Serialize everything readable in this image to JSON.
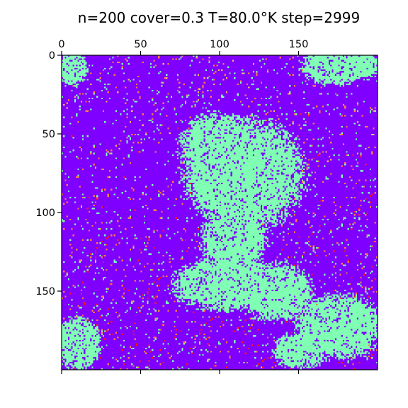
{
  "chart_data": {
    "type": "heatmap",
    "title": "n=200 cover=0.3 T=80.0°K step=2999",
    "grid_size": 200,
    "x_ticks": [
      0,
      50,
      100,
      150
    ],
    "y_ticks": [
      0,
      50,
      100,
      150
    ],
    "xlim": [
      0,
      200
    ],
    "ylim": [
      200,
      0
    ],
    "x_tick_position": "top",
    "grid": false,
    "colormap": "rainbow",
    "colors": {
      "background": "#7f00ff",
      "adsorbate": "#80ffb4",
      "warm": "#ff7e41",
      "hot": "#ff1a0e",
      "mid": "#ffb360"
    },
    "regions": [
      {
        "label": "top-left-patch",
        "shape": "ellipse",
        "center": [
          7,
          8
        ],
        "radius": [
          10,
          12
        ]
      },
      {
        "label": "top-right-patch",
        "shape": "ellipse",
        "center": [
          172,
          7
        ],
        "radius": [
          22,
          12
        ]
      },
      {
        "label": "top-right-patch-2",
        "shape": "ellipse",
        "center": [
          192,
          5
        ],
        "radius": [
          10,
          10
        ]
      },
      {
        "label": "central-upper-island",
        "shape": "ellipse",
        "center": [
          115,
          75
        ],
        "radius": [
          40,
          38
        ]
      },
      {
        "label": "central-upper-island-2",
        "shape": "ellipse",
        "center": [
          98,
          60
        ],
        "radius": [
          25,
          25
        ]
      },
      {
        "label": "central-neck",
        "shape": "ellipse",
        "center": [
          108,
          118
        ],
        "radius": [
          22,
          20
        ]
      },
      {
        "label": "central-lower-island",
        "shape": "ellipse",
        "center": [
          105,
          145
        ],
        "radius": [
          38,
          18
        ]
      },
      {
        "label": "central-lower-island-2",
        "shape": "ellipse",
        "center": [
          135,
          150
        ],
        "radius": [
          25,
          20
        ]
      },
      {
        "label": "lower-right-island",
        "shape": "ellipse",
        "center": [
          175,
          172
        ],
        "radius": [
          30,
          22
        ]
      },
      {
        "label": "bottom-center-island",
        "shape": "ellipse",
        "center": [
          150,
          188
        ],
        "radius": [
          18,
          12
        ]
      },
      {
        "label": "bottom-left-patch",
        "shape": "ellipse",
        "center": [
          10,
          183
        ],
        "radius": [
          15,
          18
        ]
      }
    ]
  }
}
